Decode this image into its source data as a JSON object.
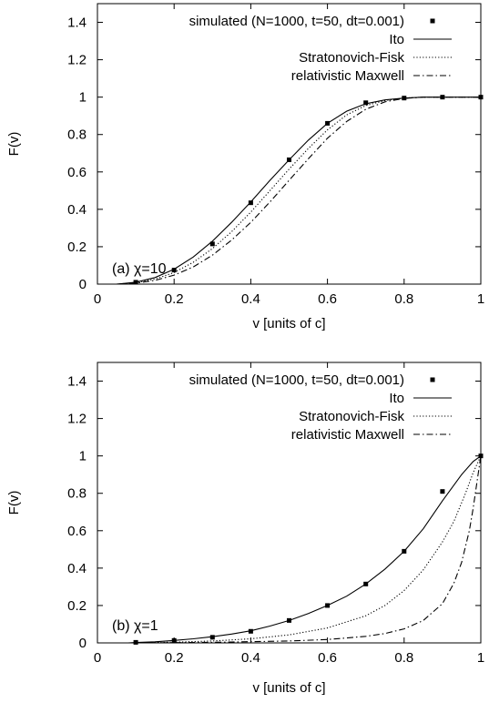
{
  "chart_data": [
    {
      "type": "line",
      "annotation": "(a)  χ=10",
      "xlabel": "v  [units of c]",
      "ylabel": "F(v)",
      "xlim": [
        0,
        1
      ],
      "ylim": [
        0,
        1.5
      ],
      "xticks": [
        "0",
        "0.2",
        "0.4",
        "0.6",
        "0.8",
        "1"
      ],
      "yticks": [
        "0",
        "0.2",
        "0.4",
        "0.6",
        "0.8",
        "1",
        "1.2",
        "1.4"
      ],
      "legend_position": "top-right",
      "grid": false,
      "simulated": {
        "name": "simulated (N=1000, t=50, dt=0.001)",
        "x": [
          0.1,
          0.2,
          0.3,
          0.4,
          0.5,
          0.6,
          0.7,
          0.8,
          0.9,
          1.0
        ],
        "y": [
          0.01,
          0.075,
          0.215,
          0.435,
          0.665,
          0.86,
          0.97,
          0.995,
          1.0,
          1.0
        ]
      },
      "series": [
        {
          "name": "Ito",
          "style": "solid",
          "x": [
            0.05,
            0.1,
            0.15,
            0.2,
            0.25,
            0.3,
            0.35,
            0.4,
            0.45,
            0.5,
            0.55,
            0.6,
            0.65,
            0.7,
            0.75,
            0.8,
            0.85,
            0.9,
            0.95,
            1.0
          ],
          "y": [
            0.0,
            0.01,
            0.035,
            0.08,
            0.145,
            0.23,
            0.33,
            0.44,
            0.555,
            0.665,
            0.77,
            0.86,
            0.925,
            0.965,
            0.985,
            0.995,
            1.0,
            1.0,
            1.0,
            1.0
          ]
        },
        {
          "name": "Stratonovich-Fisk",
          "style": "dotted",
          "x": [
            0.05,
            0.1,
            0.15,
            0.2,
            0.25,
            0.3,
            0.35,
            0.4,
            0.45,
            0.5,
            0.55,
            0.6,
            0.65,
            0.7,
            0.75,
            0.8,
            0.85,
            0.9,
            0.95,
            1.0
          ],
          "y": [
            0.0,
            0.007,
            0.027,
            0.062,
            0.117,
            0.19,
            0.28,
            0.385,
            0.5,
            0.615,
            0.725,
            0.825,
            0.905,
            0.955,
            0.982,
            0.995,
            1.0,
            1.0,
            1.0,
            1.0
          ]
        },
        {
          "name": "relativistic Maxwell",
          "style": "dashdot",
          "x": [
            0.05,
            0.1,
            0.15,
            0.2,
            0.25,
            0.3,
            0.35,
            0.4,
            0.45,
            0.5,
            0.55,
            0.6,
            0.65,
            0.7,
            0.75,
            0.8,
            0.85,
            0.9,
            0.95,
            1.0
          ],
          "y": [
            0.0,
            0.005,
            0.02,
            0.048,
            0.092,
            0.155,
            0.235,
            0.33,
            0.44,
            0.555,
            0.67,
            0.78,
            0.87,
            0.935,
            0.975,
            0.993,
            1.0,
            1.0,
            1.0,
            1.0
          ]
        }
      ]
    },
    {
      "type": "line",
      "annotation": "(b)  χ=1",
      "xlabel": "v  [units of c]",
      "ylabel": "F(v)",
      "xlim": [
        0,
        1
      ],
      "ylim": [
        0,
        1.5
      ],
      "xticks": [
        "0",
        "0.2",
        "0.4",
        "0.6",
        "0.8",
        "1"
      ],
      "yticks": [
        "0",
        "0.2",
        "0.4",
        "0.6",
        "0.8",
        "1",
        "1.2",
        "1.4"
      ],
      "legend_position": "top-right",
      "grid": false,
      "simulated": {
        "name": "simulated (N=1000, t=50, dt=0.001)",
        "x": [
          0.1,
          0.2,
          0.3,
          0.4,
          0.5,
          0.6,
          0.7,
          0.8,
          0.9,
          1.0
        ],
        "y": [
          0.003,
          0.013,
          0.03,
          0.062,
          0.12,
          0.2,
          0.315,
          0.49,
          0.81,
          1.0
        ]
      },
      "series": [
        {
          "name": "Ito",
          "style": "solid",
          "x": [
            0.08,
            0.1,
            0.15,
            0.2,
            0.25,
            0.3,
            0.35,
            0.4,
            0.45,
            0.5,
            0.55,
            0.6,
            0.65,
            0.7,
            0.75,
            0.8,
            0.85,
            0.9,
            0.95,
            0.98,
            1.0
          ],
          "y": [
            0.0,
            0.002,
            0.006,
            0.013,
            0.022,
            0.033,
            0.047,
            0.065,
            0.09,
            0.12,
            0.157,
            0.2,
            0.25,
            0.315,
            0.395,
            0.49,
            0.61,
            0.76,
            0.9,
            0.97,
            1.0
          ]
        },
        {
          "name": "Stratonovich-Fisk",
          "style": "dotted",
          "x": [
            0.1,
            0.2,
            0.3,
            0.4,
            0.5,
            0.6,
            0.7,
            0.75,
            0.8,
            0.85,
            0.9,
            0.93,
            0.96,
            0.98,
            1.0
          ],
          "y": [
            0.0,
            0.004,
            0.01,
            0.022,
            0.043,
            0.08,
            0.145,
            0.2,
            0.28,
            0.39,
            0.54,
            0.65,
            0.8,
            0.91,
            1.0
          ]
        },
        {
          "name": "relativistic Maxwell",
          "style": "dashdot",
          "x": [
            0.1,
            0.3,
            0.5,
            0.6,
            0.7,
            0.75,
            0.8,
            0.85,
            0.9,
            0.93,
            0.95,
            0.97,
            0.98,
            0.99,
            1.0
          ],
          "y": [
            0.0,
            0.003,
            0.01,
            0.018,
            0.035,
            0.05,
            0.075,
            0.12,
            0.21,
            0.32,
            0.43,
            0.6,
            0.72,
            0.86,
            1.0
          ]
        }
      ]
    }
  ]
}
